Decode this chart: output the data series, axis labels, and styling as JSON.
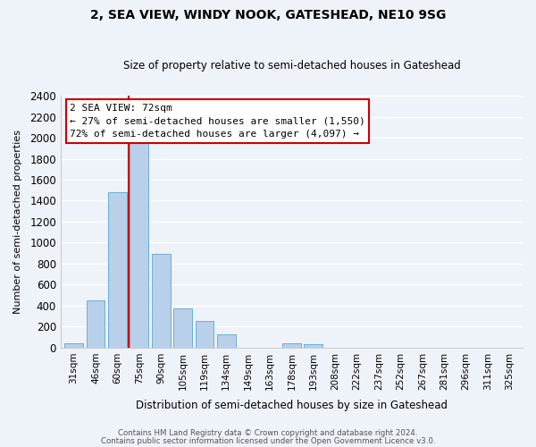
{
  "title": "2, SEA VIEW, WINDY NOOK, GATESHEAD, NE10 9SG",
  "subtitle": "Size of property relative to semi-detached houses in Gateshead",
  "xlabel": "Distribution of semi-detached houses by size in Gateshead",
  "ylabel": "Number of semi-detached properties",
  "bar_labels": [
    "31sqm",
    "46sqm",
    "60sqm",
    "75sqm",
    "90sqm",
    "105sqm",
    "119sqm",
    "134sqm",
    "149sqm",
    "163sqm",
    "178sqm",
    "193sqm",
    "208sqm",
    "222sqm",
    "237sqm",
    "252sqm",
    "267sqm",
    "281sqm",
    "296sqm",
    "311sqm",
    "325sqm"
  ],
  "bar_values": [
    45,
    450,
    1480,
    2000,
    890,
    375,
    255,
    125,
    0,
    0,
    40,
    30,
    0,
    0,
    0,
    0,
    0,
    0,
    0,
    0,
    0
  ],
  "bar_color": "#b8d0ea",
  "bar_edge_color": "#6aaed6",
  "vline_color": "#cc0000",
  "vline_x_idx": 2.5,
  "annotation_title": "2 SEA VIEW: 72sqm",
  "annotation_line1": "← 27% of semi-detached houses are smaller (1,550)",
  "annotation_line2": "72% of semi-detached houses are larger (4,097) →",
  "annotation_box_facecolor": "#ffffff",
  "annotation_box_edgecolor": "#cc0000",
  "ylim": [
    0,
    2400
  ],
  "yticks": [
    0,
    200,
    400,
    600,
    800,
    1000,
    1200,
    1400,
    1600,
    1800,
    2000,
    2200,
    2400
  ],
  "footer1": "Contains HM Land Registry data © Crown copyright and database right 2024.",
  "footer2": "Contains public sector information licensed under the Open Government Licence v3.0.",
  "bg_color": "#eef2f9",
  "grid_color": "#ffffff"
}
